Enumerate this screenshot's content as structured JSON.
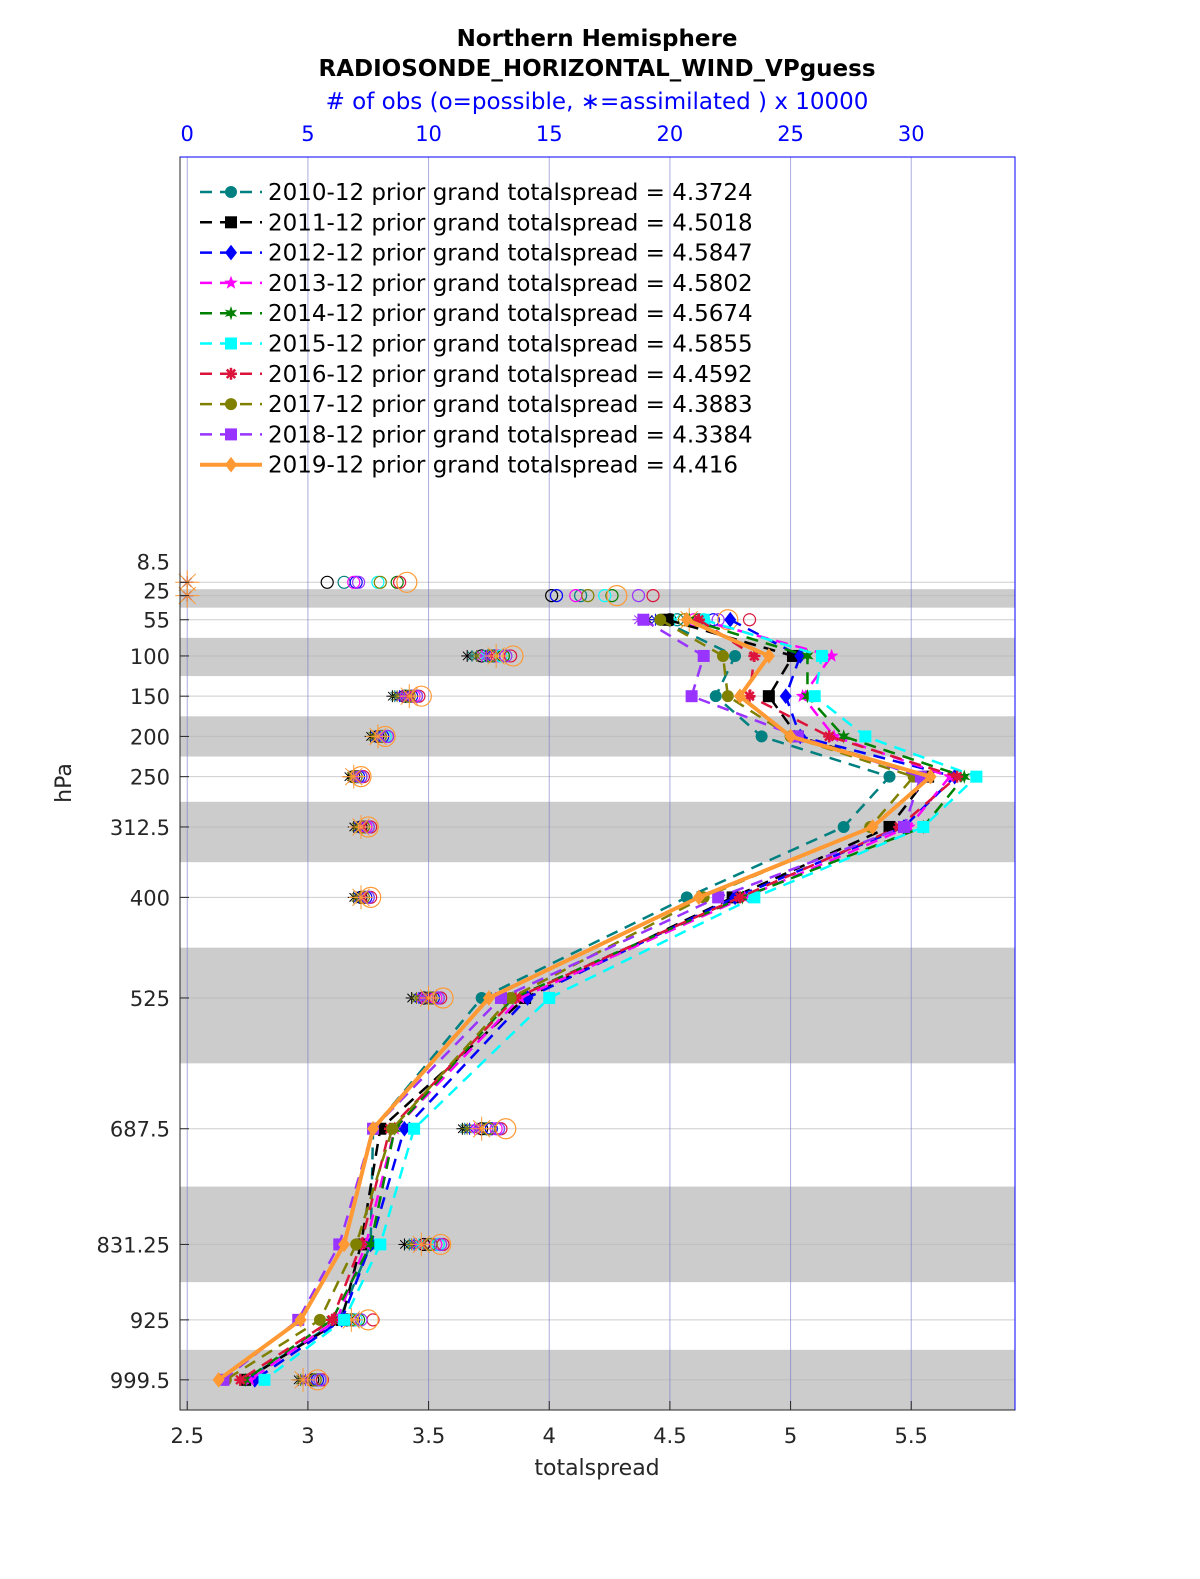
{
  "chart_data": {
    "type": "line",
    "title": "Northern Hemisphere",
    "subtitle": "RADIOSONDE_HORIZONTAL_WIND_VPguess",
    "top_axis_label": "# of obs (o=possible, ∗=assimilated ) x 10000",
    "xlabel": "totalspread",
    "ylabel": "hPa",
    "xlim": [
      2.47,
      5.93
    ],
    "top_xlim": [
      -0.3,
      34.3
    ],
    "ylim": [
      -520,
      1037
    ],
    "y_reversed": true,
    "x_ticks": [
      "2.5",
      "3",
      "3.5",
      "4",
      "4.5",
      "5",
      "5.5"
    ],
    "x_tick_values": [
      2.5,
      3,
      3.5,
      4,
      4.5,
      5,
      5.5
    ],
    "top_ticks": [
      "0",
      "5",
      "10",
      "15",
      "20",
      "25",
      "30"
    ],
    "top_tick_values": [
      0,
      5,
      10,
      15,
      20,
      25,
      30
    ],
    "levels": [
      8.5,
      25,
      55,
      100,
      150,
      200,
      250,
      312.5,
      400,
      525,
      687.5,
      831.25,
      925,
      999.5
    ],
    "level_labels": [
      "8.5",
      "25",
      "55",
      "100",
      "150",
      "200",
      "250",
      "312.5",
      "400",
      "525",
      "687.5",
      "831.25",
      "925",
      "999.5"
    ],
    "shaded_bands": [
      [
        17,
        40
      ],
      [
        77.5,
        125
      ],
      [
        175,
        225
      ],
      [
        281.25,
        356.25
      ],
      [
        462.5,
        606.25
      ],
      [
        759.4,
        878.1
      ],
      [
        962.25,
        1037
      ]
    ],
    "legend_position": "top-left",
    "series": [
      {
        "name": "2010-12 prior grand totalspread = 4.3724",
        "color": "#008080",
        "marker": "circle",
        "dash": true,
        "values": [
          null,
          null,
          4.46,
          4.77,
          4.69,
          4.88,
          5.41,
          5.22,
          4.57,
          3.72,
          3.27,
          3.26,
          3.13,
          2.74
        ],
        "obs_possible": [
          6.5,
          16.3,
          20.3,
          12.5,
          9.1,
          8.0,
          7.0,
          7.3,
          7.3,
          10.0,
          12.4,
          10.0,
          6.8,
          5.3
        ],
        "obs_assimilated": [
          0,
          0,
          19.6,
          11.8,
          8.6,
          7.7,
          6.8,
          7.0,
          7.0,
          9.5,
          11.5,
          9.2,
          6.2,
          4.7
        ]
      },
      {
        "name": "2011-12 prior grand totalspread = 4.5018",
        "color": "#000000",
        "marker": "square",
        "dash": true,
        "values": [
          null,
          null,
          4.49,
          5.01,
          4.91,
          5.03,
          5.57,
          5.41,
          4.76,
          3.9,
          3.3,
          3.22,
          3.14,
          2.74
        ],
        "obs_possible": [
          5.8,
          15.1,
          20.0,
          12.2,
          9.0,
          7.9,
          6.9,
          7.2,
          7.2,
          9.8,
          12.2,
          9.8,
          6.6,
          5.2
        ],
        "obs_assimilated": [
          0,
          0,
          19.1,
          11.6,
          8.5,
          7.6,
          6.7,
          6.9,
          6.9,
          9.3,
          11.4,
          9.0,
          6.0,
          4.6
        ]
      },
      {
        "name": "2012-12 prior grand totalspread = 4.5847",
        "color": "#0000ff",
        "marker": "diamond",
        "dash": true,
        "values": [
          null,
          null,
          4.75,
          5.04,
          4.98,
          5.04,
          5.68,
          5.47,
          4.77,
          3.91,
          3.4,
          3.26,
          3.14,
          2.78
        ],
        "obs_possible": [
          7.0,
          15.3,
          21.8,
          12.7,
          9.3,
          8.1,
          7.1,
          7.4,
          7.4,
          10.2,
          12.6,
          10.1,
          6.9,
          5.4
        ],
        "obs_assimilated": [
          0,
          0,
          19.4,
          12.0,
          8.8,
          7.8,
          6.9,
          7.1,
          7.1,
          9.6,
          11.7,
          9.4,
          6.3,
          4.8
        ]
      },
      {
        "name": "2013-12 prior grand totalspread = 4.5802",
        "color": "#ff00ff",
        "marker": "star",
        "dash": true,
        "values": [
          null,
          null,
          4.62,
          5.17,
          5.05,
          5.18,
          5.66,
          5.49,
          4.81,
          3.88,
          3.36,
          3.24,
          3.12,
          2.76
        ],
        "obs_possible": [
          6.9,
          16.1,
          21.0,
          12.9,
          9.4,
          8.2,
          7.2,
          7.4,
          7.5,
          10.3,
          12.8,
          10.3,
          7.0,
          5.5
        ],
        "obs_assimilated": [
          0,
          0,
          19.8,
          12.2,
          8.9,
          7.9,
          6.9,
          7.2,
          7.2,
          9.7,
          11.9,
          9.5,
          6.4,
          4.9
        ]
      },
      {
        "name": "2014-12 prior grand totalspread = 4.5674",
        "color": "#008000",
        "marker": "hexagram",
        "dash": true,
        "values": [
          null,
          null,
          4.58,
          5.07,
          5.07,
          5.22,
          5.72,
          5.55,
          4.8,
          3.85,
          3.36,
          3.26,
          3.1,
          2.74
        ],
        "obs_possible": [
          8.7,
          17.6,
          21.2,
          13.1,
          9.5,
          8.3,
          7.2,
          7.5,
          7.5,
          10.4,
          12.9,
          10.4,
          7.1,
          5.5
        ],
        "obs_assimilated": [
          0,
          0,
          20.0,
          12.4,
          9.0,
          8.0,
          7.0,
          7.2,
          7.3,
          9.8,
          12.0,
          9.6,
          6.5,
          4.9
        ]
      },
      {
        "name": "2015-12 prior grand totalspread = 4.5855",
        "color": "#00ffff",
        "marker": "square",
        "dash": true,
        "values": [
          null,
          null,
          4.64,
          5.13,
          5.1,
          5.31,
          5.77,
          5.55,
          4.85,
          4.0,
          3.44,
          3.3,
          3.15,
          2.82
        ],
        "obs_possible": [
          7.9,
          17.3,
          21.4,
          13.0,
          9.5,
          8.2,
          7.2,
          7.5,
          7.5,
          10.4,
          12.9,
          10.4,
          7.0,
          5.5
        ],
        "obs_assimilated": [
          0,
          0,
          20.2,
          12.3,
          9.0,
          7.9,
          7.0,
          7.2,
          7.2,
          9.8,
          12.0,
          9.6,
          6.4,
          4.9
        ]
      },
      {
        "name": "2016-12 prior grand totalspread = 4.4592",
        "color": "#dc143c",
        "marker": "asterisk",
        "dash": true,
        "values": [
          null,
          null,
          4.62,
          4.85,
          4.83,
          5.16,
          5.69,
          5.45,
          4.79,
          3.86,
          3.34,
          3.22,
          3.1,
          2.72
        ],
        "obs_possible": [
          8.8,
          19.3,
          23.3,
          13.4,
          9.6,
          8.3,
          7.3,
          7.6,
          7.6,
          10.5,
          13.0,
          10.6,
          7.7,
          5.6
        ],
        "obs_assimilated": [
          0,
          0,
          21.3,
          12.6,
          9.1,
          8.0,
          7.0,
          7.3,
          7.3,
          9.9,
          12.1,
          9.8,
          6.8,
          5.0
        ]
      },
      {
        "name": "2017-12 prior grand totalspread = 4.3883",
        "color": "#808000",
        "marker": "circle",
        "dash": true,
        "values": [
          null,
          null,
          4.46,
          4.72,
          4.74,
          5.0,
          5.51,
          5.33,
          4.64,
          3.84,
          3.35,
          3.2,
          3.05,
          2.66
        ],
        "obs_possible": [
          8.0,
          16.6,
          20.6,
          12.6,
          9.2,
          8.0,
          7.0,
          7.3,
          7.3,
          10.1,
          12.5,
          10.1,
          6.8,
          5.3
        ],
        "obs_assimilated": [
          0,
          0,
          19.9,
          12.0,
          8.7,
          7.7,
          6.8,
          7.0,
          7.0,
          9.5,
          11.6,
          9.3,
          6.2,
          4.7
        ]
      },
      {
        "name": "2018-12 prior grand totalspread = 4.3384",
        "color": "#9933ff",
        "marker": "square",
        "dash": true,
        "values": [
          null,
          null,
          4.39,
          4.64,
          4.59,
          5.03,
          5.54,
          5.47,
          4.7,
          3.8,
          3.27,
          3.13,
          2.96,
          2.65
        ],
        "obs_possible": [
          7.1,
          18.7,
          22.0,
          13.2,
          9.5,
          8.3,
          7.2,
          7.5,
          7.5,
          10.4,
          12.9,
          10.5,
          7.2,
          5.5
        ],
        "obs_assimilated": [
          0,
          0,
          18.7,
          12.4,
          9.0,
          8.0,
          7.0,
          7.2,
          7.2,
          9.8,
          12.0,
          9.7,
          6.5,
          4.9
        ]
      },
      {
        "name": "2019-12 prior grand totalspread = 4.416",
        "color": "#ff9933",
        "marker": "diamond",
        "dash": false,
        "values": [
          null,
          null,
          4.57,
          4.91,
          4.79,
          5.0,
          5.58,
          5.34,
          4.62,
          3.75,
          3.27,
          3.15,
          2.97,
          2.63
        ],
        "obs_possible": [
          9.1,
          17.8,
          22.4,
          13.5,
          9.7,
          8.2,
          7.2,
          7.5,
          7.6,
          10.6,
          13.2,
          10.5,
          7.5,
          5.4
        ],
        "obs_assimilated": [
          0,
          0,
          20.8,
          12.8,
          9.2,
          7.9,
          6.9,
          7.2,
          7.2,
          10.0,
          12.2,
          9.7,
          6.8,
          4.8
        ]
      }
    ]
  }
}
